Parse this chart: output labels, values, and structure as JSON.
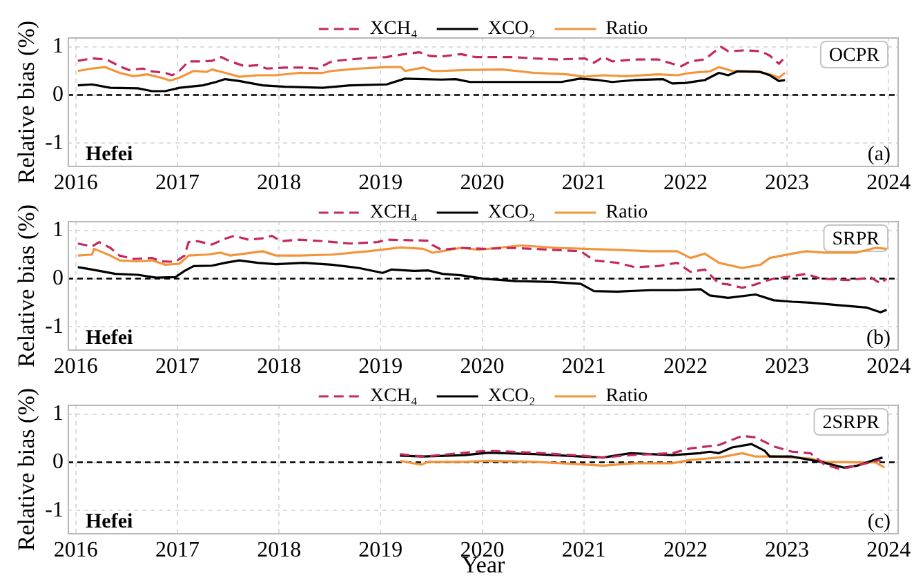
{
  "chart_data": [
    {
      "type": "line",
      "ylabel": "Relative bias (%)",
      "xlim": [
        2015.92,
        2024.1
      ],
      "xticks": [
        2016,
        2017,
        2018,
        2019,
        2020,
        2021,
        2022,
        2023,
        2024
      ],
      "ylim": [
        -1.5,
        1.2
      ],
      "yticks": [
        -1,
        0,
        1
      ],
      "grid": true,
      "legend": "top",
      "ref_lines": [
        {
          "axis": "y",
          "value": 0,
          "color": "#000000",
          "line_style": "dashed"
        }
      ],
      "annotations": [
        "Hefei",
        "(a)",
        "OCPR"
      ],
      "series": [
        {
          "name": "XCH₄",
          "color": "#c4285e",
          "line_style": "dashed",
          "x": [
            2016.02,
            2016.16,
            2016.3,
            2016.43,
            2016.52,
            2016.66,
            2016.75,
            2016.88,
            2016.95,
            2017.02,
            2017.11,
            2017.25,
            2017.34,
            2017.43,
            2017.52,
            2017.66,
            2017.79,
            2017.88,
            2018.06,
            2018.24,
            2018.38,
            2018.52,
            2018.7,
            2018.88,
            2019.06,
            2019.2,
            2019.38,
            2019.49,
            2019.6,
            2019.79,
            2019.93,
            2020.3,
            2020.51,
            2020.74,
            2021.01,
            2021.1,
            2021.19,
            2021.28,
            2021.5,
            2021.73,
            2021.87,
            2021.96,
            2022.05,
            2022.19,
            2022.28,
            2022.35,
            2022.42,
            2022.6,
            2022.74,
            2022.83,
            2022.92,
            2022.96
          ],
          "values": [
            0.71,
            0.76,
            0.74,
            0.6,
            0.52,
            0.55,
            0.49,
            0.46,
            0.41,
            0.5,
            0.7,
            0.7,
            0.71,
            0.79,
            0.7,
            0.6,
            0.62,
            0.55,
            0.57,
            0.57,
            0.55,
            0.7,
            0.74,
            0.77,
            0.79,
            0.84,
            0.89,
            0.81,
            0.8,
            0.85,
            0.79,
            0.79,
            0.76,
            0.74,
            0.76,
            0.67,
            0.79,
            0.7,
            0.74,
            0.74,
            0.65,
            0.6,
            0.7,
            0.74,
            0.89,
            1.0,
            0.91,
            0.93,
            0.91,
            0.82,
            0.65,
            0.74
          ]
        },
        {
          "name": "XCO₂",
          "color": "#000000",
          "x": [
            2016.02,
            2016.16,
            2016.34,
            2016.61,
            2016.75,
            2016.88,
            2017.02,
            2017.25,
            2017.38,
            2017.47,
            2017.61,
            2017.84,
            2018.06,
            2018.43,
            2018.7,
            2019.06,
            2019.24,
            2019.42,
            2019.6,
            2019.74,
            2019.88,
            2020.3,
            2020.78,
            2020.96,
            2021.14,
            2021.28,
            2021.5,
            2021.78,
            2021.87,
            2022.0,
            2022.19,
            2022.33,
            2022.42,
            2022.51,
            2022.74,
            2022.83,
            2022.92,
            2022.98
          ],
          "values": [
            0.2,
            0.22,
            0.15,
            0.14,
            0.08,
            0.08,
            0.15,
            0.2,
            0.27,
            0.33,
            0.29,
            0.2,
            0.17,
            0.15,
            0.2,
            0.22,
            0.34,
            0.33,
            0.32,
            0.33,
            0.27,
            0.27,
            0.27,
            0.34,
            0.31,
            0.27,
            0.31,
            0.33,
            0.24,
            0.25,
            0.31,
            0.46,
            0.41,
            0.49,
            0.48,
            0.41,
            0.29,
            0.31
          ]
        },
        {
          "name": "Ratio",
          "color": "#f4943a",
          "x": [
            2016.02,
            2016.16,
            2016.29,
            2016.43,
            2016.57,
            2016.7,
            2016.84,
            2016.93,
            2017.02,
            2017.16,
            2017.29,
            2017.34,
            2017.47,
            2017.61,
            2017.79,
            2017.97,
            2018.2,
            2018.43,
            2018.52,
            2018.79,
            2019.06,
            2019.2,
            2019.24,
            2019.42,
            2019.51,
            2019.6,
            2019.83,
            2020.2,
            2020.51,
            2020.83,
            2021.01,
            2021.19,
            2021.41,
            2021.73,
            2021.92,
            2022.05,
            2022.24,
            2022.33,
            2022.46,
            2022.69,
            2022.83,
            2022.92,
            2022.98
          ],
          "values": [
            0.5,
            0.55,
            0.58,
            0.46,
            0.39,
            0.43,
            0.36,
            0.3,
            0.36,
            0.5,
            0.48,
            0.53,
            0.46,
            0.38,
            0.41,
            0.41,
            0.46,
            0.46,
            0.5,
            0.55,
            0.58,
            0.58,
            0.5,
            0.57,
            0.5,
            0.5,
            0.52,
            0.53,
            0.46,
            0.43,
            0.38,
            0.41,
            0.39,
            0.43,
            0.41,
            0.46,
            0.49,
            0.58,
            0.5,
            0.49,
            0.43,
            0.36,
            0.46
          ]
        }
      ]
    },
    {
      "type": "line",
      "ylabel": "Relative bias (%)",
      "xlim": [
        2015.92,
        2024.1
      ],
      "xticks": [
        2016,
        2017,
        2018,
        2019,
        2020,
        2021,
        2022,
        2023,
        2024
      ],
      "ylim": [
        -1.5,
        1.2
      ],
      "yticks": [
        -1,
        0,
        1
      ],
      "grid": true,
      "legend": "top",
      "ref_lines": [
        {
          "axis": "y",
          "value": 0,
          "color": "#000000",
          "line_style": "dashed"
        }
      ],
      "annotations": [
        "Hefei",
        "(b)",
        "SRPR"
      ],
      "series": [
        {
          "name": "XCH₄",
          "color": "#c4285e",
          "line_style": "dashed",
          "x": [
            2016.02,
            2016.16,
            2016.23,
            2016.34,
            2016.43,
            2016.57,
            2016.75,
            2016.84,
            2016.98,
            2017.07,
            2017.11,
            2017.2,
            2017.34,
            2017.47,
            2017.56,
            2017.7,
            2017.84,
            2017.93,
            2018.02,
            2018.2,
            2018.43,
            2018.7,
            2018.97,
            2019.06,
            2019.47,
            2019.51,
            2019.6,
            2019.79,
            2020.01,
            2020.3,
            2020.69,
            2020.97,
            2021.1,
            2021.33,
            2021.5,
            2021.73,
            2021.92,
            2022.05,
            2022.19,
            2022.33,
            2022.42,
            2022.56,
            2022.69,
            2022.78,
            2022.87,
            2023.05,
            2023.19,
            2023.33,
            2023.6,
            2023.83,
            2023.92,
            2023.98
          ],
          "values": [
            0.73,
            0.67,
            0.76,
            0.64,
            0.48,
            0.41,
            0.43,
            0.36,
            0.35,
            0.48,
            0.76,
            0.78,
            0.71,
            0.83,
            0.89,
            0.81,
            0.84,
            0.89,
            0.78,
            0.81,
            0.78,
            0.73,
            0.76,
            0.81,
            0.79,
            0.7,
            0.6,
            0.64,
            0.62,
            0.64,
            0.6,
            0.57,
            0.38,
            0.33,
            0.24,
            0.26,
            0.33,
            0.14,
            0.19,
            -0.1,
            -0.12,
            -0.19,
            -0.12,
            -0.05,
            0,
            0.05,
            0.1,
            0,
            -0.03,
            0.02,
            -0.1,
            0
          ]
        },
        {
          "name": "XCO₂",
          "color": "#000000",
          "x": [
            2016.02,
            2016.16,
            2016.39,
            2016.61,
            2016.79,
            2016.98,
            2017.07,
            2017.16,
            2017.34,
            2017.47,
            2017.61,
            2017.79,
            2017.97,
            2018.24,
            2018.52,
            2018.79,
            2019.02,
            2019.11,
            2019.33,
            2019.47,
            2019.61,
            2019.79,
            2020.01,
            2020.33,
            2020.69,
            2020.97,
            2021.1,
            2021.33,
            2021.65,
            2021.92,
            2022.15,
            2022.24,
            2022.42,
            2022.69,
            2022.87,
            2023.05,
            2023.23,
            2023.5,
            2023.78,
            2023.92,
            2023.98
          ],
          "values": [
            0.24,
            0.19,
            0.1,
            0.08,
            0.02,
            0.03,
            0.16,
            0.26,
            0.27,
            0.33,
            0.38,
            0.33,
            0.3,
            0.33,
            0.29,
            0.22,
            0.12,
            0.19,
            0.16,
            0.17,
            0.1,
            0.07,
            0,
            -0.05,
            -0.07,
            -0.11,
            -0.26,
            -0.27,
            -0.24,
            -0.24,
            -0.22,
            -0.35,
            -0.4,
            -0.33,
            -0.45,
            -0.48,
            -0.5,
            -0.55,
            -0.6,
            -0.7,
            -0.65
          ]
        },
        {
          "name": "Ratio",
          "color": "#f4943a",
          "x": [
            2016.02,
            2016.16,
            2016.18,
            2016.34,
            2016.43,
            2016.61,
            2016.75,
            2016.88,
            2017.02,
            2017.11,
            2017.29,
            2017.43,
            2017.52,
            2017.66,
            2017.84,
            2017.97,
            2018.2,
            2018.52,
            2018.88,
            2019.2,
            2019.42,
            2019.51,
            2019.6,
            2019.79,
            2019.97,
            2020.38,
            2020.74,
            2021.01,
            2021.33,
            2021.65,
            2021.92,
            2022.05,
            2022.19,
            2022.33,
            2022.56,
            2022.74,
            2022.83,
            2023.05,
            2023.19,
            2023.37,
            2023.68,
            2023.87,
            2023.98
          ],
          "values": [
            0.48,
            0.5,
            0.62,
            0.48,
            0.38,
            0.36,
            0.38,
            0.29,
            0.31,
            0.48,
            0.5,
            0.54,
            0.48,
            0.52,
            0.57,
            0.48,
            0.48,
            0.5,
            0.57,
            0.65,
            0.62,
            0.54,
            0.57,
            0.64,
            0.6,
            0.69,
            0.64,
            0.62,
            0.6,
            0.57,
            0.57,
            0.43,
            0.52,
            0.33,
            0.22,
            0.29,
            0.43,
            0.52,
            0.57,
            0.54,
            0.54,
            0.64,
            0.62
          ]
        }
      ]
    },
    {
      "type": "line",
      "xlabel": "Year",
      "ylabel": "Relative bias (%)",
      "xlim": [
        2015.92,
        2024.1
      ],
      "xticks": [
        2016,
        2017,
        2018,
        2019,
        2020,
        2021,
        2022,
        2023,
        2024
      ],
      "ylim": [
        -1.5,
        1.2
      ],
      "yticks": [
        -1,
        0,
        1
      ],
      "grid": true,
      "legend": "top",
      "ref_lines": [
        {
          "axis": "y",
          "value": 0,
          "color": "#000000",
          "line_style": "dashed"
        }
      ],
      "annotations": [
        "Hefei",
        "(c)",
        "2SRPR"
      ],
      "series": [
        {
          "name": "XCH₄",
          "color": "#c4285e",
          "line_style": "dashed",
          "x": [
            2019.19,
            2019.42,
            2019.83,
            2020.06,
            2020.51,
            2020.97,
            2021.19,
            2021.46,
            2021.87,
            2022.05,
            2022.33,
            2022.56,
            2022.69,
            2022.87,
            2023.05,
            2023.23,
            2023.37,
            2023.51,
            2023.6,
            2023.78,
            2023.92
          ],
          "values": [
            0.17,
            0.12,
            0.2,
            0.24,
            0.2,
            0.14,
            0.1,
            0.15,
            0.19,
            0.29,
            0.36,
            0.55,
            0.52,
            0.33,
            0.22,
            0.19,
            -0.05,
            -0.13,
            -0.11,
            -0.02,
            0.05
          ]
        },
        {
          "name": "XCO₂",
          "color": "#000000",
          "x": [
            2019.19,
            2019.42,
            2019.83,
            2020.06,
            2020.51,
            2020.97,
            2021.19,
            2021.46,
            2021.87,
            2022.14,
            2022.24,
            2022.33,
            2022.46,
            2022.65,
            2022.78,
            2022.83,
            2023.05,
            2023.33,
            2023.56,
            2023.69,
            2023.83,
            2023.94
          ],
          "values": [
            0.14,
            0.12,
            0.15,
            0.2,
            0.17,
            0.12,
            0.1,
            0.19,
            0.15,
            0.19,
            0.22,
            0.19,
            0.31,
            0.38,
            0.24,
            0.12,
            0.12,
            0.01,
            -0.11,
            -0.07,
            0.03,
            0.1
          ]
        },
        {
          "name": "Ratio",
          "color": "#f4943a",
          "x": [
            2019.19,
            2019.4,
            2019.47,
            2019.83,
            2020.06,
            2020.51,
            2020.97,
            2021.19,
            2021.51,
            2021.87,
            2022.05,
            2022.33,
            2022.56,
            2022.69,
            2022.87,
            2023.23,
            2023.37,
            2023.69,
            2023.87,
            2023.96
          ],
          "values": [
            0.03,
            -0.05,
            0.01,
            0.01,
            0.03,
            0.01,
            -0.04,
            -0.07,
            -0.02,
            -0.02,
            0.05,
            0.1,
            0.19,
            0.12,
            0.12,
            0.08,
            0.01,
            0,
            0,
            -0.11
          ]
        }
      ]
    }
  ]
}
